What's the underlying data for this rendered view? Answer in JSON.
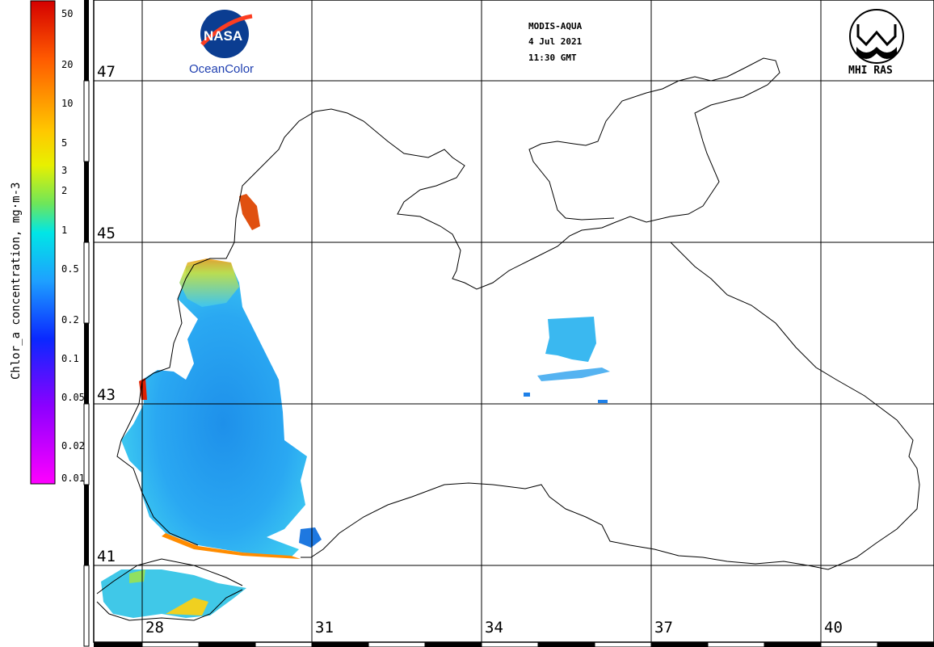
{
  "header": {
    "sensor": "MODIS-AQUA",
    "date": "4 Jul 2021",
    "time": "11:30 GMT"
  },
  "logos": {
    "nasa_text": "OceanColor",
    "mhi_text": "MHI RAS"
  },
  "colorbar": {
    "title": "Chlor_a concentration, mg·m-3",
    "ticks": [
      "50",
      "20",
      "10",
      "5",
      "3",
      "2",
      "1",
      "0.5",
      "0.2",
      "0.1",
      "0.05",
      "0.02",
      "0.01"
    ],
    "colors": [
      "#d40000",
      "#ff5a00",
      "#ffc800",
      "#e8f000",
      "#6ee65a",
      "#00e6e6",
      "#1ea0ff",
      "#0a28ff",
      "#8c00ff",
      "#ff00ff"
    ]
  },
  "grid": {
    "lat_labels": [
      "47",
      "45",
      "43",
      "41"
    ],
    "lon_labels": [
      "28",
      "31",
      "34",
      "37",
      "40"
    ]
  },
  "colors": {
    "water_main": "#29aef0",
    "water_open": "#1e8fe8",
    "coast_high": "#ff8c00",
    "coast_red": "#e02000"
  }
}
